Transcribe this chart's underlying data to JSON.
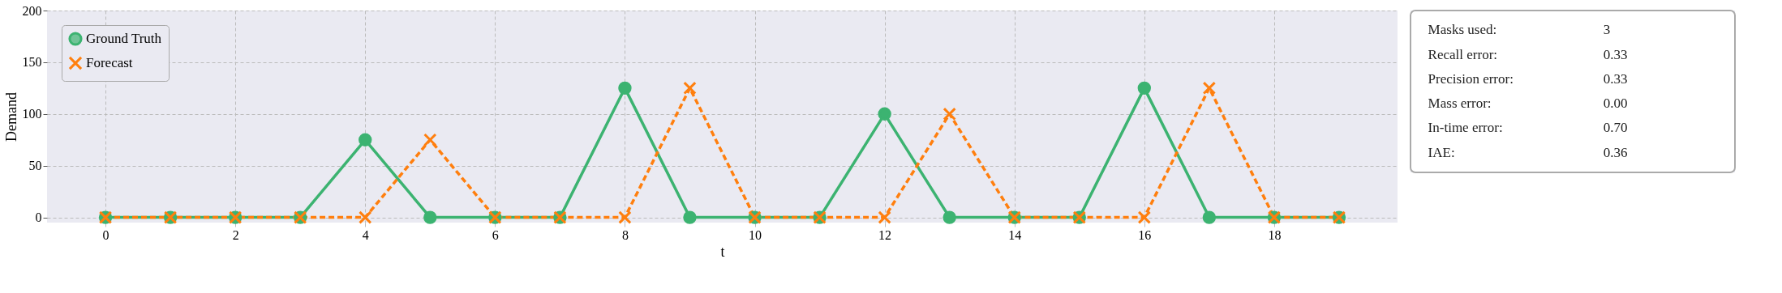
{
  "chart_data": [
    {
      "type": "line",
      "xlabel": "t",
      "ylabel": "Demand",
      "x": [
        0,
        1,
        2,
        3,
        4,
        5,
        6,
        7,
        8,
        9,
        10,
        11,
        12,
        13,
        14,
        15,
        16,
        17,
        18,
        19
      ],
      "series": [
        {
          "name": "Ground Truth",
          "color": "#3cb371",
          "marker": "circle",
          "line_style": "solid",
          "values": [
            0,
            0,
            0,
            0,
            75,
            0,
            0,
            0,
            125,
            0,
            0,
            0,
            100,
            0,
            0,
            0,
            125,
            0,
            0,
            0
          ]
        },
        {
          "name": "Forecast",
          "color": "#ff7f0e",
          "marker": "cross",
          "line_style": "dashed",
          "values": [
            0,
            0,
            0,
            0,
            0,
            75,
            0,
            0,
            0,
            125,
            0,
            0,
            0,
            100,
            0,
            0,
            0,
            125,
            0,
            0
          ]
        }
      ],
      "xlim": [
        -0.9,
        19.9
      ],
      "ylim": [
        -5,
        200
      ],
      "xticks": [
        0,
        2,
        4,
        6,
        8,
        10,
        12,
        14,
        16,
        18
      ],
      "yticks": [
        0,
        50,
        100,
        150,
        200
      ],
      "grid": true,
      "legend": "top left"
    },
    {
      "type": "other",
      "annotations": [
        "Masks used:",
        "3",
        "Recall error:",
        "0.33",
        "Precision error:",
        "0.33",
        "Mass error:",
        "0.00",
        "In-time error:",
        "0.70",
        "IAE:",
        "0.36"
      ]
    }
  ]
}
